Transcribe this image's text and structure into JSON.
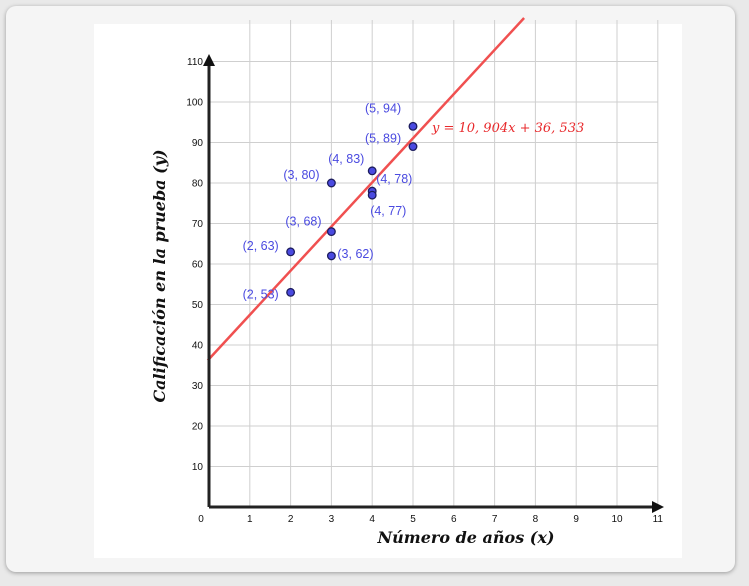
{
  "chart_data": {
    "type": "scatter",
    "title": "",
    "xlabel": "Número de años (x)",
    "ylabel": "Calificación en la prueba (y)",
    "xlim": [
      0,
      11
    ],
    "ylim": [
      0,
      110
    ],
    "x_ticks": [
      0,
      1,
      2,
      3,
      4,
      5,
      6,
      7,
      8,
      9,
      10,
      11
    ],
    "y_ticks": [
      10,
      20,
      30,
      40,
      50,
      60,
      70,
      80,
      90,
      100,
      110
    ],
    "grid": true,
    "points": [
      {
        "x": 2,
        "y": 53,
        "label": "(2, 53)"
      },
      {
        "x": 2,
        "y": 63,
        "label": "(2, 63)"
      },
      {
        "x": 3,
        "y": 68,
        "label": "(3, 68)"
      },
      {
        "x": 3,
        "y": 62,
        "label": "(3, 62)"
      },
      {
        "x": 3,
        "y": 80,
        "label": "(3, 80)"
      },
      {
        "x": 4,
        "y": 83,
        "label": "(4, 83)"
      },
      {
        "x": 4,
        "y": 78,
        "label": "(4, 78)"
      },
      {
        "x": 4,
        "y": 77,
        "label": "(4, 77)"
      },
      {
        "x": 5,
        "y": 94,
        "label": "(5, 94)"
      },
      {
        "x": 5,
        "y": 89,
        "label": "(5, 89)"
      }
    ],
    "regression": {
      "slope": 10.904,
      "intercept": 36.533,
      "label": "y = 10, 904x + 36, 533"
    },
    "colors": {
      "points": "#4a4ae0",
      "line": "#f05050",
      "grid": "#cfcfcf",
      "axis": "#222222",
      "equation": "#e8282b"
    }
  }
}
